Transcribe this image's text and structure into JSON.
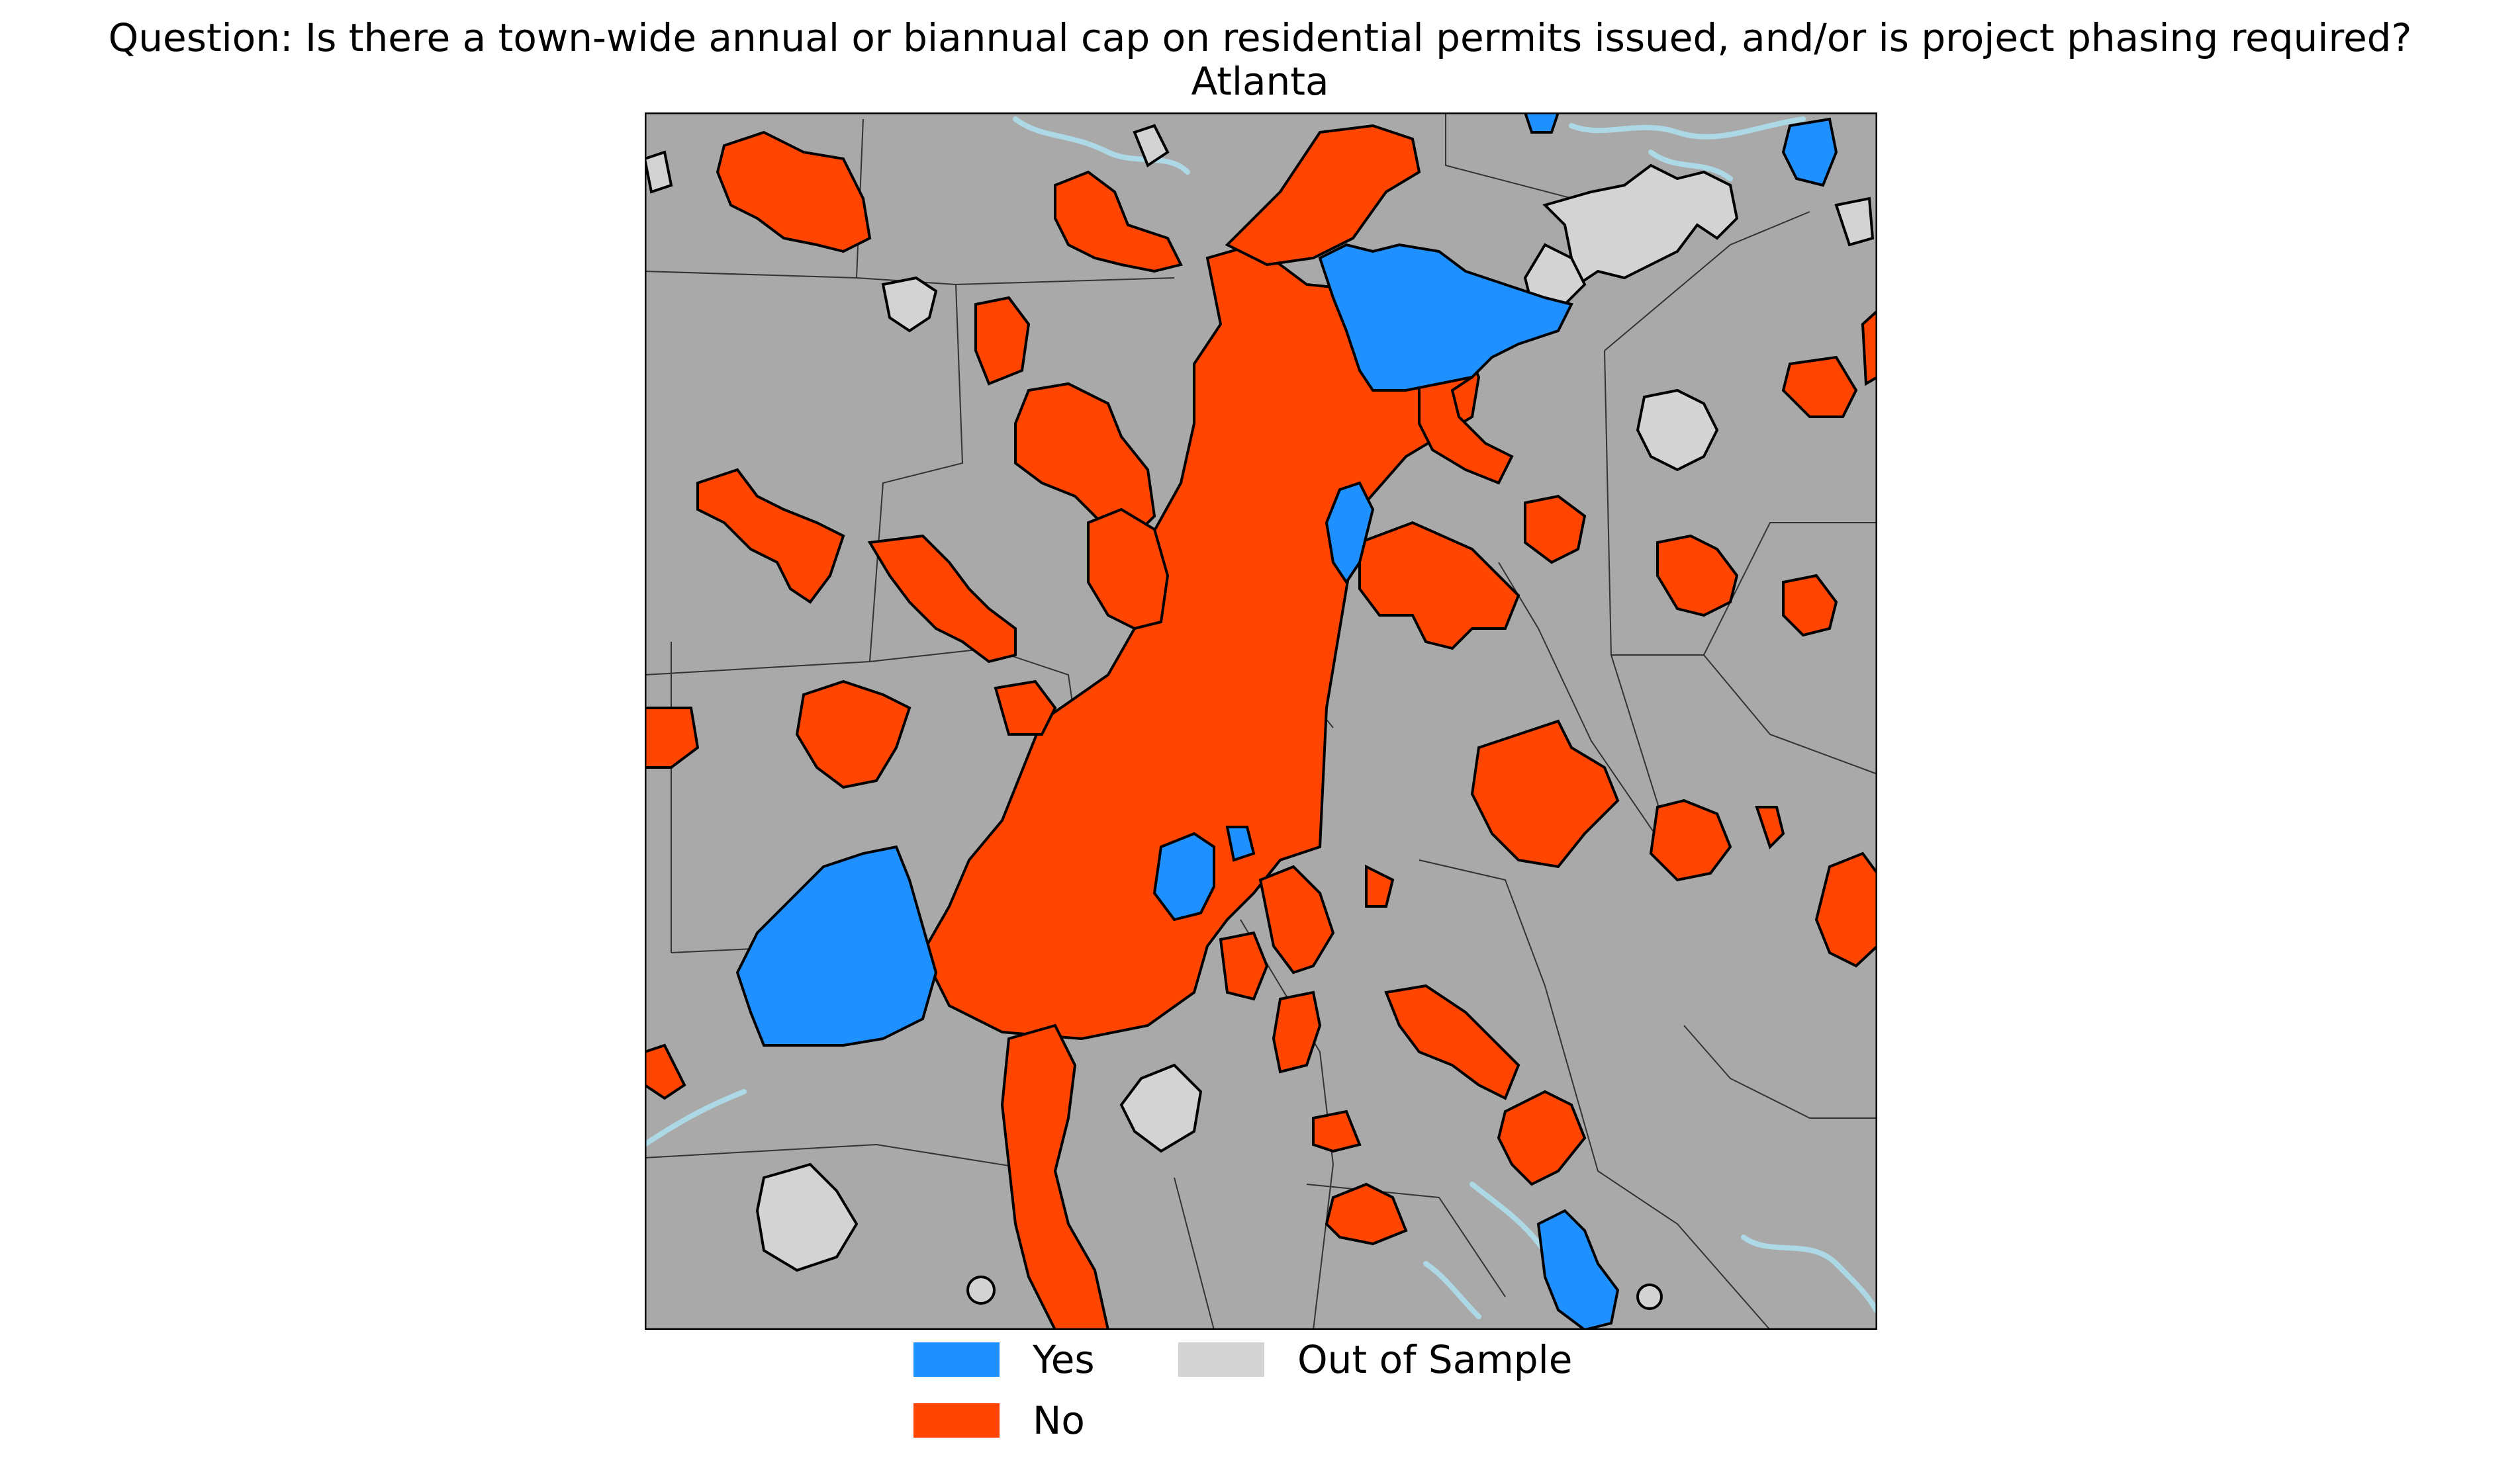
{
  "title": {
    "question": "Question: Is there a town-wide annual or biannual cap on residential permits issued, and/or is project phasing required?",
    "region": "Atlanta"
  },
  "colors": {
    "yes": "#1e90ff",
    "no": "#ff4500",
    "out_of_sample": "#d3d3d3",
    "background_land": "#a9a9a9",
    "water": "#add8e6",
    "boundary": "#000000"
  },
  "legend": {
    "items": [
      {
        "key": "yes",
        "label": "Yes"
      },
      {
        "key": "no",
        "label": "No"
      },
      {
        "key": "out_of_sample",
        "label": "Out of Sample"
      }
    ]
  }
}
